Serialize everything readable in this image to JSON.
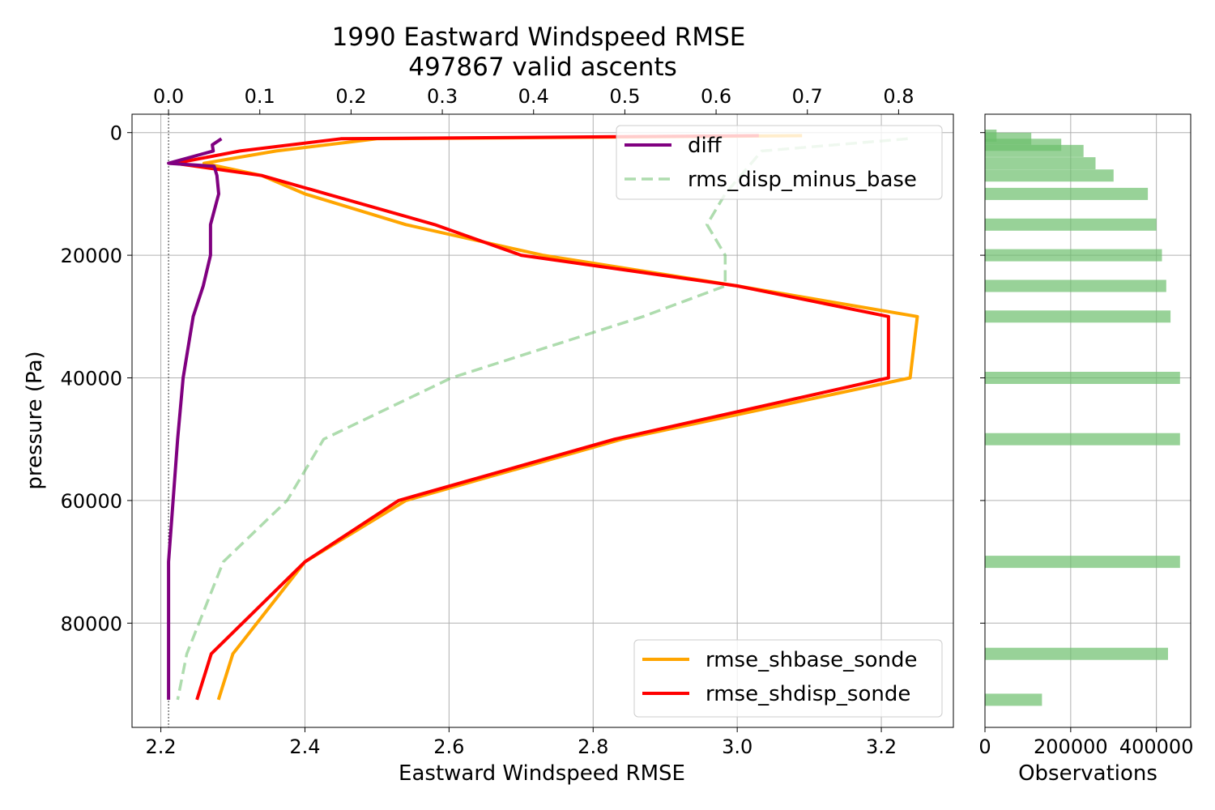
{
  "chart_data": [
    {
      "type": "line",
      "title": "1990 Eastward Windspeed RMSE",
      "subtitle": "497867 valid ascents",
      "xlabel": "Eastward Windspeed RMSE",
      "ylabel": "pressure (Pa)",
      "xlim": [
        2.16,
        3.3
      ],
      "ylim": [
        97000,
        -3000
      ],
      "y_inverted": true,
      "grid": true,
      "x_ticks": [
        2.2,
        2.4,
        2.6,
        2.8,
        3.0,
        3.2
      ],
      "x_tick_labels": [
        "2.2",
        "2.4",
        "2.6",
        "2.8",
        "3.0",
        "3.2"
      ],
      "y_ticks": [
        0,
        20000,
        40000,
        60000,
        80000
      ],
      "y_tick_labels": [
        "0",
        "20000",
        "40000",
        "60000",
        "80000"
      ],
      "top_axis": {
        "xlim": [
          -0.04,
          0.86
        ],
        "ticks": [
          0.0,
          0.1,
          0.2,
          0.3,
          0.4,
          0.5,
          0.6,
          0.7,
          0.8
        ],
        "tick_labels": [
          "0.0",
          "0.1",
          "0.2",
          "0.3",
          "0.4",
          "0.5",
          "0.6",
          "0.7",
          "0.8"
        ]
      },
      "series": [
        {
          "name": "rmse_shbase_sonde",
          "axis": "bottom",
          "color": "#ffa500",
          "style": "solid",
          "points": [
            [
              3.09,
              500
            ],
            [
              2.5,
              1000
            ],
            [
              2.36,
              3000
            ],
            [
              2.26,
              5000
            ],
            [
              2.34,
              7000
            ],
            [
              2.4,
              10000
            ],
            [
              2.54,
              15000
            ],
            [
              2.73,
              20000
            ],
            [
              3.0,
              25000
            ],
            [
              3.25,
              30000
            ],
            [
              3.24,
              40000
            ],
            [
              2.84,
              50000
            ],
            [
              2.54,
              60000
            ],
            [
              2.4,
              70000
            ],
            [
              2.3,
              85000
            ],
            [
              2.28,
              92500
            ]
          ]
        },
        {
          "name": "rmse_shdisp_sonde",
          "axis": "bottom",
          "color": "#ff0000",
          "style": "solid",
          "points": [
            [
              3.03,
              500
            ],
            [
              2.45,
              1000
            ],
            [
              2.31,
              3000
            ],
            [
              2.22,
              5000
            ],
            [
              2.34,
              7000
            ],
            [
              2.43,
              10000
            ],
            [
              2.58,
              15000
            ],
            [
              2.7,
              20000
            ],
            [
              3.0,
              25000
            ],
            [
              3.21,
              30000
            ],
            [
              3.21,
              40000
            ],
            [
              2.83,
              50000
            ],
            [
              2.53,
              60000
            ],
            [
              2.4,
              70000
            ],
            [
              2.27,
              85000
            ],
            [
              2.25,
              92500
            ]
          ]
        },
        {
          "name": "diff",
          "axis": "top",
          "color": "#800080",
          "style": "solid",
          "points": [
            [
              0.058,
              1000
            ],
            [
              0.048,
              2000
            ],
            [
              0.049,
              3000
            ],
            [
              0.0,
              5000
            ],
            [
              0.05,
              5500
            ],
            [
              0.053,
              7000
            ],
            [
              0.055,
              10000
            ],
            [
              0.046,
              15000
            ],
            [
              0.046,
              20000
            ],
            [
              0.038,
              25000
            ],
            [
              0.027,
              30000
            ],
            [
              0.016,
              40000
            ],
            [
              0.01,
              50000
            ],
            [
              0.005,
              60000
            ],
            [
              0.0,
              70000
            ],
            [
              0.0,
              85000
            ],
            [
              0.0,
              92500
            ]
          ]
        },
        {
          "name": "rms_disp_minus_base",
          "axis": "top",
          "color": "#6cbf6c",
          "style": "dashed",
          "points": [
            [
              0.81,
              1000
            ],
            [
              0.65,
              3000
            ],
            [
              0.61,
              10000
            ],
            [
              0.59,
              15000
            ],
            [
              0.61,
              20000
            ],
            [
              0.61,
              25000
            ],
            [
              0.52,
              30000
            ],
            [
              0.31,
              40000
            ],
            [
              0.17,
              50000
            ],
            [
              0.13,
              60000
            ],
            [
              0.06,
              70000
            ],
            [
              0.02,
              85000
            ],
            [
              0.01,
              92500
            ]
          ]
        }
      ],
      "legends": [
        {
          "placement": "top-right",
          "entries": [
            "diff",
            "rms_disp_minus_base"
          ]
        },
        {
          "placement": "bottom-right",
          "entries": [
            "rmse_shbase_sonde",
            "rmse_shdisp_sonde"
          ]
        }
      ]
    },
    {
      "type": "bar",
      "orientation": "horizontal",
      "xlabel": "Observations",
      "xlim": [
        0,
        480000
      ],
      "x_ticks": [
        0,
        200000,
        400000
      ],
      "x_tick_labels": [
        "0",
        "200000",
        "400000"
      ],
      "grid": true,
      "bar_color": "#6cbf6c",
      "bars": [
        {
          "pressure": 500,
          "count": 27000
        },
        {
          "pressure": 1000,
          "count": 108000
        },
        {
          "pressure": 2000,
          "count": 178000
        },
        {
          "pressure": 3000,
          "count": 230000
        },
        {
          "pressure": 5000,
          "count": 258000
        },
        {
          "pressure": 7000,
          "count": 300000
        },
        {
          "pressure": 10000,
          "count": 380000
        },
        {
          "pressure": 15000,
          "count": 400000
        },
        {
          "pressure": 20000,
          "count": 413000
        },
        {
          "pressure": 25000,
          "count": 423000
        },
        {
          "pressure": 30000,
          "count": 433000
        },
        {
          "pressure": 40000,
          "count": 455000
        },
        {
          "pressure": 50000,
          "count": 455000
        },
        {
          "pressure": 70000,
          "count": 455000
        },
        {
          "pressure": 85000,
          "count": 427000
        },
        {
          "pressure": 92500,
          "count": 133000
        }
      ]
    }
  ]
}
